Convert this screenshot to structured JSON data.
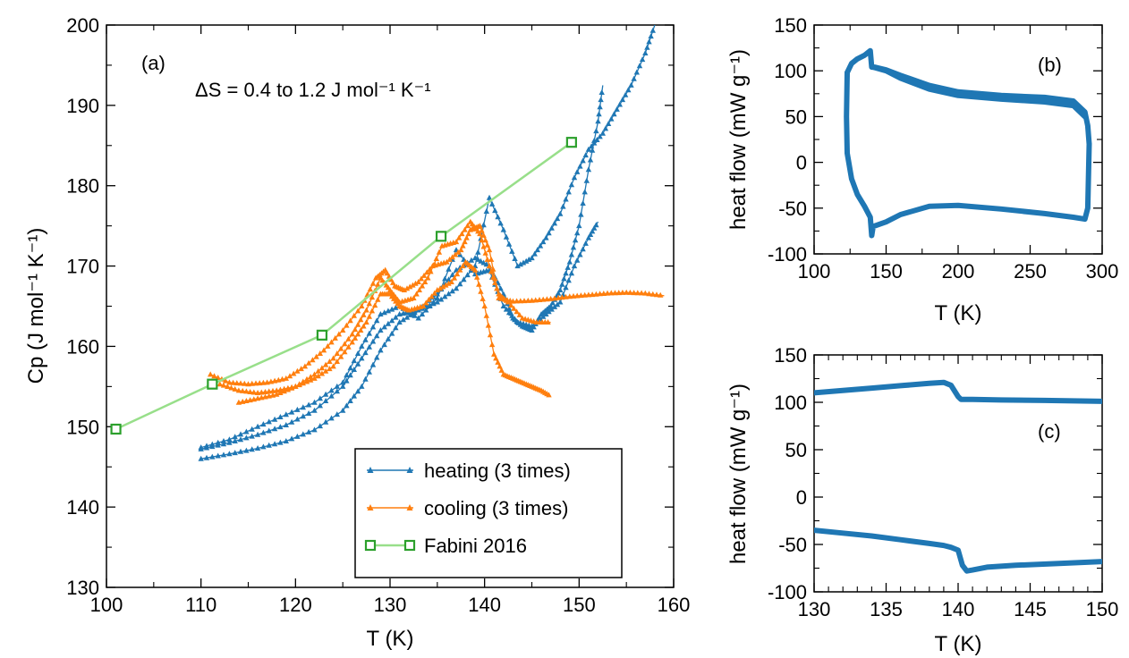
{
  "chart_data": [
    {
      "panel": "a",
      "type": "line",
      "panel_label": "(a)",
      "annotation": "ΔS = 0.4 to 1.2 J mol⁻¹ K⁻¹",
      "xlabel": "T (K)",
      "ylabel": "Cp (J mol⁻¹ K⁻¹)",
      "xlim": [
        100,
        160
      ],
      "ylim": [
        130,
        200
      ],
      "xticks": [
        100,
        110,
        120,
        130,
        140,
        150,
        160
      ],
      "yticks": [
        130,
        140,
        150,
        160,
        170,
        180,
        190,
        200
      ],
      "legend_position": "bottom-right",
      "legend": [
        "heating (3 times)",
        "cooling (3 times)",
        "Fabini 2016"
      ],
      "colors": {
        "heating": "#1f77b4",
        "cooling": "#ff7f0e",
        "fabini": "#2ca02c",
        "fabini_line": "#98df8a"
      },
      "series": [
        {
          "name": "heating (3 times)",
          "group": "heating",
          "x": [
            110,
            113,
            116,
            119,
            122,
            125,
            127,
            129,
            131,
            133,
            135,
            137,
            139,
            140.5,
            142,
            143.5,
            145,
            146.5,
            148,
            149.5,
            151,
            152.5,
            154,
            155.5,
            157,
            158
          ],
          "y": [
            146.0,
            146.6,
            147.3,
            148.2,
            149.6,
            152.0,
            155.0,
            159.5,
            163.0,
            164.5,
            165.5,
            167.2,
            170.0,
            178.5,
            174.5,
            170.0,
            171.0,
            173.5,
            176.5,
            181.0,
            184.5,
            186.5,
            189.5,
            192.5,
            196.5,
            200.0
          ]
        },
        {
          "name": "heating (3 times)",
          "group": "heating",
          "x": [
            110,
            113,
            116,
            119,
            122,
            125,
            127,
            129,
            131,
            133,
            135,
            137,
            139,
            140.5,
            142,
            143,
            144,
            145,
            146,
            147,
            148,
            149,
            150,
            151,
            152,
            152.5
          ],
          "y": [
            147.2,
            148.0,
            149.0,
            150.2,
            152.0,
            155.0,
            158.5,
            162.0,
            164.0,
            164.5,
            166.5,
            169.5,
            171.0,
            170.0,
            166.5,
            163.5,
            162.5,
            162.0,
            164.0,
            165.0,
            167.0,
            170.5,
            175.0,
            182.0,
            188.0,
            192.5
          ]
        },
        {
          "name": "heating (3 times)",
          "group": "heating",
          "x": [
            110,
            113,
            116,
            119,
            122,
            125,
            127,
            129,
            131,
            133,
            135,
            137,
            139,
            140.5,
            142,
            143.5,
            145,
            146.5,
            148,
            149.5,
            151,
            152
          ],
          "y": [
            147.4,
            148.4,
            150.0,
            151.5,
            153.0,
            155.5,
            160.0,
            164.0,
            165.0,
            163.5,
            166.0,
            172.0,
            169.0,
            169.5,
            165.0,
            163.0,
            162.5,
            164.0,
            165.5,
            170.0,
            173.5,
            175.5
          ]
        },
        {
          "name": "cooling (3 times)",
          "group": "cooling",
          "x": [
            111,
            113,
            115,
            117,
            119,
            121,
            123,
            125,
            127,
            128.5,
            129.5,
            130.5,
            131.5,
            133,
            134.5,
            136,
            137.5,
            138.5,
            139.5,
            140.5,
            141.5,
            143,
            145,
            147,
            149,
            151,
            153,
            155,
            157,
            159
          ],
          "y": [
            156.5,
            155.5,
            155.3,
            155.5,
            156.0,
            157.5,
            159.5,
            162.0,
            165.0,
            168.5,
            169.5,
            167.5,
            167.0,
            168.0,
            170.0,
            170.5,
            172.0,
            174.5,
            175.0,
            172.0,
            166.0,
            165.6,
            165.7,
            165.9,
            166.2,
            166.4,
            166.6,
            166.7,
            166.6,
            166.3
          ]
        },
        {
          "name": "cooling (3 times)",
          "group": "cooling",
          "x": [
            112,
            114,
            116,
            118,
            120,
            122,
            124,
            126,
            127.5,
            129,
            130,
            131,
            132.5,
            134,
            135.5,
            137,
            138.5,
            139.5,
            140.5,
            141.5,
            142.5,
            144,
            145.5,
            147
          ],
          "y": [
            155.3,
            154.5,
            154.2,
            154.5,
            155.0,
            156.5,
            158.5,
            161.5,
            164.5,
            168.5,
            167.0,
            165.5,
            166.0,
            168.5,
            172.5,
            173.0,
            175.5,
            174.0,
            170.0,
            166.5,
            165.5,
            163.5,
            163.0,
            163.0
          ]
        },
        {
          "name": "cooling (3 times)",
          "group": "cooling",
          "x": [
            114,
            116,
            118,
            120,
            122,
            124,
            126,
            127.5,
            129,
            130,
            131,
            132,
            133.5,
            135,
            136.5,
            138,
            139,
            140,
            141,
            142,
            143,
            144,
            145,
            146,
            147
          ],
          "y": [
            153.0,
            153.5,
            154.0,
            155.0,
            156.0,
            157.5,
            160.5,
            163.0,
            166.5,
            166.5,
            165.0,
            164.5,
            165.0,
            167.0,
            168.0,
            170.5,
            169.5,
            165.0,
            159.0,
            156.5,
            156.0,
            155.5,
            155.0,
            154.5,
            153.8
          ]
        },
        {
          "name": "Fabini 2016",
          "group": "fabini",
          "x": [
            101,
            111.2,
            122.8,
            135.4,
            149.2
          ],
          "y": [
            149.7,
            155.3,
            161.4,
            173.7,
            185.4
          ]
        }
      ]
    },
    {
      "panel": "b",
      "type": "line",
      "panel_label": "(b)",
      "xlabel": "T (K)",
      "ylabel": "heat flow (mW g⁻¹)",
      "xlim": [
        100,
        300
      ],
      "ylim": [
        -100,
        150
      ],
      "xticks": [
        100,
        150,
        200,
        250,
        300
      ],
      "yticks": [
        -100,
        -50,
        0,
        50,
        100,
        150
      ],
      "color": "#1f77b4",
      "series": [
        {
          "name": "heating",
          "x": [
            123,
            126,
            130,
            135,
            139,
            140,
            142,
            150,
            160,
            180,
            200,
            230,
            260,
            280,
            288,
            290,
            291
          ],
          "y": [
            98,
            108,
            113,
            117,
            122,
            104,
            104,
            101,
            95,
            84,
            77,
            73,
            71,
            67,
            55,
            40,
            20
          ]
        },
        {
          "name": "heating",
          "x": [
            141,
            150,
            160,
            180,
            200,
            230,
            260,
            280,
            288
          ],
          "y": [
            104,
            100,
            92,
            80,
            73,
            69,
            66,
            62,
            50
          ]
        },
        {
          "name": "cooling",
          "x": [
            291,
            290,
            288,
            280,
            260,
            230,
            200,
            180,
            160,
            150,
            141,
            140,
            139,
            135,
            130,
            126,
            123,
            122.5,
            123
          ],
          "y": [
            20,
            -50,
            -62,
            -60,
            -56,
            -51,
            -47,
            -48,
            -57,
            -65,
            -70,
            -80,
            -60,
            -48,
            -35,
            -18,
            10,
            50,
            98
          ]
        }
      ]
    },
    {
      "panel": "c",
      "type": "line",
      "panel_label": "(c)",
      "xlabel": "T (K)",
      "ylabel": "heat flow (mW g⁻¹)",
      "xlim": [
        130,
        150
      ],
      "ylim": [
        -100,
        150
      ],
      "xticks": [
        130,
        135,
        140,
        145,
        150
      ],
      "yticks": [
        -100,
        -50,
        0,
        50,
        100,
        150
      ],
      "color": "#1f77b4",
      "series": [
        {
          "name": "heating",
          "x": [
            130,
            132,
            134,
            136,
            138,
            139,
            139.5,
            140,
            140.2,
            141,
            143,
            146,
            150
          ],
          "y": [
            110,
            112.5,
            115,
            117.5,
            120,
            121,
            118,
            106,
            103,
            103,
            102.5,
            102,
            101
          ]
        },
        {
          "name": "cooling",
          "x": [
            130,
            132,
            134,
            136,
            138,
            139,
            139.5,
            140,
            140.3,
            140.6,
            141,
            142,
            144,
            147,
            150
          ],
          "y": [
            -35,
            -38,
            -41,
            -45,
            -49,
            -51,
            -53,
            -56,
            -72,
            -78,
            -77,
            -74,
            -72,
            -70,
            -68
          ]
        }
      ]
    }
  ]
}
